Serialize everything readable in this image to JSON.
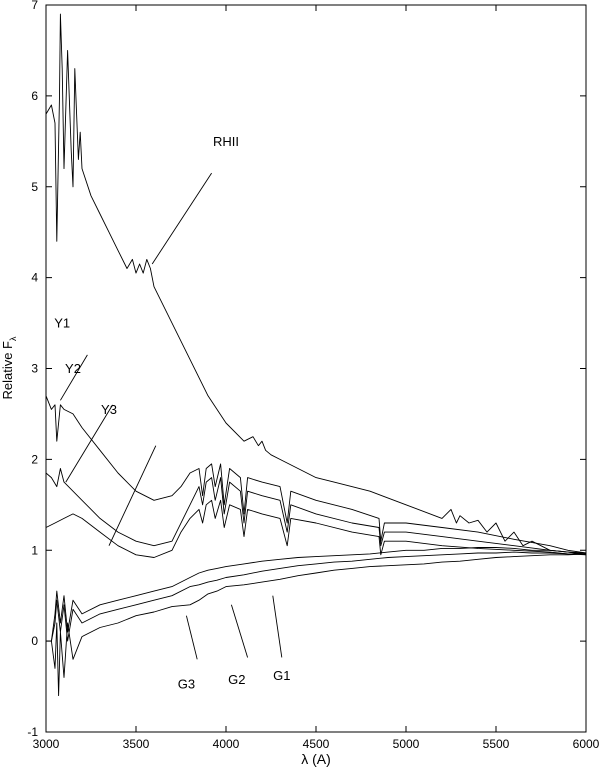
{
  "chart_data": {
    "type": "line",
    "title": "",
    "xlabel": "λ (A)",
    "ylabel_main": "Relative F",
    "ylabel_sub": "λ",
    "xlim": [
      3000,
      6000
    ],
    "ylim": [
      -1,
      7
    ],
    "x_ticks": [
      3000,
      3500,
      4000,
      4500,
      5000,
      5500,
      6000
    ],
    "y_ticks": [
      -1,
      0,
      1,
      2,
      3,
      4,
      5,
      6,
      7
    ],
    "grid": false,
    "legend": "none",
    "line_color": "#000000",
    "series": [
      {
        "name": "RHII",
        "x": [
          3000,
          3030,
          3050,
          3060,
          3075,
          3080,
          3090,
          3100,
          3120,
          3140,
          3150,
          3160,
          3170,
          3180,
          3190,
          3200,
          3250,
          3300,
          3350,
          3400,
          3450,
          3480,
          3500,
          3520,
          3540,
          3560,
          3580,
          3600,
          3700,
          3800,
          3900,
          4000,
          4100,
          4150,
          4180,
          4200,
          4220,
          4250,
          4300,
          4400,
          4500,
          4600,
          4800,
          5000,
          5200,
          5250,
          5280,
          5300,
          5350,
          5400,
          5450,
          5500,
          5550,
          5600,
          5650,
          5700,
          5800,
          5900,
          6000
        ],
        "y": [
          5.8,
          5.9,
          5.7,
          4.4,
          6.0,
          6.9,
          6.3,
          5.2,
          6.5,
          5.4,
          5.0,
          6.3,
          5.8,
          5.3,
          5.6,
          5.2,
          4.9,
          4.7,
          4.5,
          4.3,
          4.1,
          4.2,
          4.05,
          4.15,
          4.05,
          4.2,
          4.1,
          3.9,
          3.5,
          3.1,
          2.7,
          2.4,
          2.2,
          2.25,
          2.15,
          2.2,
          2.1,
          2.05,
          2.0,
          1.9,
          1.8,
          1.75,
          1.65,
          1.5,
          1.35,
          1.45,
          1.3,
          1.38,
          1.3,
          1.33,
          1.2,
          1.3,
          1.1,
          1.2,
          1.05,
          1.1,
          1.0,
          0.98,
          0.95
        ]
      },
      {
        "name": "Y1",
        "x": [
          3000,
          3030,
          3050,
          3060,
          3080,
          3100,
          3150,
          3200,
          3300,
          3400,
          3500,
          3600,
          3700,
          3750,
          3800,
          3850,
          3870,
          3890,
          3920,
          3940,
          3970,
          3990,
          4020,
          4080,
          4100,
          4120,
          4200,
          4300,
          4340,
          4360,
          4500,
          4700,
          4850,
          4860,
          4880,
          5000,
          5200,
          5400,
          5600,
          5800,
          5900,
          6000
        ],
        "y": [
          2.7,
          2.55,
          2.6,
          2.2,
          2.6,
          2.55,
          2.5,
          2.35,
          2.1,
          1.85,
          1.65,
          1.55,
          1.6,
          1.7,
          1.85,
          1.9,
          1.6,
          1.9,
          1.95,
          1.7,
          1.95,
          1.5,
          1.9,
          1.8,
          1.4,
          1.8,
          1.75,
          1.7,
          1.3,
          1.65,
          1.55,
          1.45,
          1.35,
          1.1,
          1.3,
          1.3,
          1.25,
          1.2,
          1.12,
          1.05,
          1.0,
          0.97
        ]
      },
      {
        "name": "Y2",
        "x": [
          3000,
          3030,
          3060,
          3080,
          3100,
          3150,
          3200,
          3300,
          3400,
          3500,
          3600,
          3700,
          3800,
          3850,
          3870,
          3890,
          3920,
          3940,
          3970,
          3990,
          4020,
          4080,
          4100,
          4120,
          4200,
          4300,
          4340,
          4360,
          4500,
          4700,
          4850,
          4860,
          4880,
          5000,
          5200,
          5400,
          5600,
          5800,
          5900,
          6000
        ],
        "y": [
          1.85,
          1.8,
          1.7,
          1.9,
          1.75,
          1.65,
          1.55,
          1.35,
          1.2,
          1.1,
          1.05,
          1.1,
          1.5,
          1.7,
          1.5,
          1.75,
          1.8,
          1.55,
          1.8,
          1.4,
          1.75,
          1.65,
          1.3,
          1.65,
          1.6,
          1.55,
          1.2,
          1.5,
          1.4,
          1.3,
          1.25,
          1.05,
          1.2,
          1.2,
          1.15,
          1.1,
          1.05,
          1.0,
          0.98,
          0.96
        ]
      },
      {
        "name": "Y3",
        "x": [
          3000,
          3050,
          3100,
          3150,
          3200,
          3300,
          3400,
          3500,
          3600,
          3700,
          3750,
          3800,
          3850,
          3870,
          3890,
          3920,
          3940,
          3970,
          3990,
          4020,
          4080,
          4100,
          4120,
          4200,
          4300,
          4340,
          4360,
          4500,
          4700,
          4850,
          4860,
          4880,
          5000,
          5200,
          5400,
          5600,
          5800,
          5900,
          6000
        ],
        "y": [
          1.25,
          1.3,
          1.35,
          1.4,
          1.35,
          1.2,
          1.05,
          0.95,
          0.92,
          1.0,
          1.2,
          1.35,
          1.45,
          1.3,
          1.5,
          1.55,
          1.35,
          1.55,
          1.25,
          1.5,
          1.45,
          1.15,
          1.45,
          1.4,
          1.35,
          1.05,
          1.35,
          1.3,
          1.2,
          1.15,
          0.95,
          1.1,
          1.1,
          1.05,
          1.02,
          1.0,
          0.98,
          0.96,
          0.95
        ]
      },
      {
        "name": "G1",
        "x": [
          3000,
          3030,
          3050,
          3060,
          3080,
          3100,
          3120,
          3150,
          3200,
          3300,
          3400,
          3500,
          3600,
          3700,
          3800,
          3850,
          3900,
          3950,
          4000,
          4100,
          4200,
          4300,
          4400,
          4500,
          4600,
          4700,
          4800,
          4900,
          5000,
          5100,
          5200,
          5300,
          5400,
          5500,
          5600,
          5700,
          5800,
          5900,
          6000
        ],
        "y": [
          0.0,
          0.0,
          0.3,
          0.55,
          0.2,
          0.5,
          0.1,
          0.45,
          0.3,
          0.4,
          0.45,
          0.5,
          0.55,
          0.6,
          0.7,
          0.75,
          0.78,
          0.8,
          0.82,
          0.85,
          0.88,
          0.9,
          0.92,
          0.93,
          0.94,
          0.95,
          0.96,
          0.98,
          1.0,
          1.0,
          1.02,
          1.02,
          1.03,
          1.03,
          1.02,
          1.0,
          1.0,
          0.98,
          0.97
        ]
      },
      {
        "name": "G2",
        "x": [
          3000,
          3030,
          3050,
          3060,
          3080,
          3100,
          3120,
          3150,
          3200,
          3300,
          3400,
          3500,
          3600,
          3700,
          3800,
          3850,
          3900,
          3950,
          4000,
          4100,
          4200,
          4300,
          4400,
          4500,
          4600,
          4700,
          4800,
          4900,
          5000,
          5100,
          5200,
          5300,
          5400,
          5500,
          5600,
          5700,
          5800,
          5900,
          6000
        ],
        "y": [
          0.0,
          0.0,
          0.2,
          0.45,
          0.1,
          0.4,
          0.0,
          0.35,
          0.2,
          0.3,
          0.35,
          0.4,
          0.45,
          0.5,
          0.6,
          0.62,
          0.65,
          0.67,
          0.7,
          0.73,
          0.77,
          0.8,
          0.83,
          0.85,
          0.87,
          0.88,
          0.9,
          0.92,
          0.93,
          0.94,
          0.95,
          0.96,
          0.97,
          0.97,
          0.98,
          0.97,
          0.97,
          0.96,
          0.96
        ]
      },
      {
        "name": "G3",
        "x": [
          3000,
          3030,
          3050,
          3060,
          3070,
          3080,
          3100,
          3120,
          3150,
          3200,
          3300,
          3400,
          3500,
          3600,
          3700,
          3800,
          3850,
          3900,
          3950,
          4000,
          4100,
          4200,
          4300,
          4400,
          4500,
          4600,
          4700,
          4800,
          4900,
          5000,
          5100,
          5200,
          5300,
          5400,
          5500,
          5600,
          5700,
          5800,
          5900,
          6000
        ],
        "y": [
          0.0,
          0.0,
          -0.3,
          0.2,
          -0.6,
          0.1,
          -0.4,
          0.2,
          -0.2,
          0.05,
          0.15,
          0.2,
          0.28,
          0.32,
          0.38,
          0.4,
          0.45,
          0.52,
          0.55,
          0.6,
          0.62,
          0.65,
          0.68,
          0.72,
          0.75,
          0.78,
          0.8,
          0.82,
          0.83,
          0.84,
          0.85,
          0.87,
          0.88,
          0.9,
          0.92,
          0.93,
          0.94,
          0.95,
          0.95,
          0.96
        ]
      }
    ],
    "annotations": [
      {
        "text": "RHII",
        "label_at": [
          4000,
          5.45
        ],
        "line_from": [
          3590,
          4.15
        ],
        "line_to": [
          3920,
          5.15
        ]
      },
      {
        "text": "Y1",
        "label_at": [
          3090,
          3.45
        ],
        "line_from": [
          3080,
          2.65
        ],
        "line_to": [
          3230,
          3.15
        ]
      },
      {
        "text": "Y2",
        "label_at": [
          3150,
          2.95
        ],
        "line_from": [
          3110,
          1.75
        ],
        "line_to": [
          3370,
          2.6
        ]
      },
      {
        "text": "Y3",
        "label_at": [
          3350,
          2.5
        ],
        "line_from": [
          3350,
          1.05
        ],
        "line_to": [
          3610,
          2.15
        ]
      },
      {
        "text": "G3",
        "label_at": [
          3780,
          -0.52
        ],
        "line_from": [
          3780,
          0.28
        ],
        "line_to": [
          3840,
          -0.2
        ]
      },
      {
        "text": "G2",
        "label_at": [
          4060,
          -0.47
        ],
        "line_from": [
          4030,
          0.4
        ],
        "line_to": [
          4120,
          -0.18
        ]
      },
      {
        "text": "G1",
        "label_at": [
          4310,
          -0.43
        ],
        "line_from": [
          4260,
          0.5
        ],
        "line_to": [
          4310,
          -0.18
        ]
      }
    ]
  }
}
